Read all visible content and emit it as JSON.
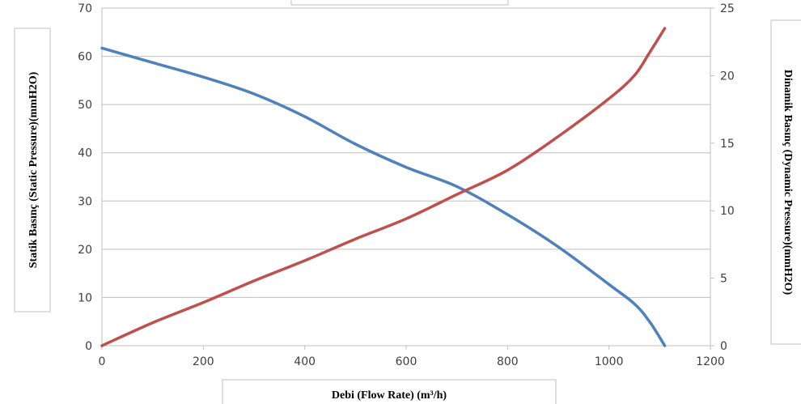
{
  "chart_data": {
    "type": "line",
    "title": "",
    "xlabel": "Debi  (Flow  Rate)  (m³/h)",
    "ylabel_left": "Statik Basınç (Static Pressure)(mmH2O)",
    "ylabel_right": "Dinamik  Basınç (Dynamic  Pressure)(mmH2O)",
    "xlim": [
      0,
      1200
    ],
    "ylim_left": [
      0,
      70
    ],
    "ylim_right": [
      0,
      25
    ],
    "x_ticks": [
      "0",
      "200",
      "400",
      "600",
      "800",
      "1000",
      "1200"
    ],
    "y_ticks_left": [
      "0",
      "10",
      "20",
      "30",
      "40",
      "50",
      "60",
      "70"
    ],
    "y_ticks_right": [
      "0",
      "5",
      "10",
      "15",
      "20",
      "25"
    ],
    "grid": true,
    "series": [
      {
        "axis": "left",
        "color": "#4F81BD",
        "points": [
          [
            0,
            61.7
          ],
          [
            100,
            58.7
          ],
          [
            200,
            55.7
          ],
          [
            300,
            52.2
          ],
          [
            400,
            47.5
          ],
          [
            500,
            41.8
          ],
          [
            600,
            37.0
          ],
          [
            700,
            33.0
          ],
          [
            800,
            27.2
          ],
          [
            900,
            20.5
          ],
          [
            1000,
            12.7
          ],
          [
            1050,
            8.7
          ],
          [
            1080,
            5.0
          ],
          [
            1110,
            0.0
          ]
        ]
      },
      {
        "axis": "right",
        "color": "#C0504D",
        "points": [
          [
            0,
            0.0
          ],
          [
            100,
            1.7
          ],
          [
            200,
            3.2
          ],
          [
            300,
            4.8
          ],
          [
            400,
            6.3
          ],
          [
            500,
            7.9
          ],
          [
            600,
            9.4
          ],
          [
            700,
            11.2
          ],
          [
            800,
            13.0
          ],
          [
            900,
            15.5
          ],
          [
            1000,
            18.3
          ],
          [
            1050,
            20.0
          ],
          [
            1080,
            21.7
          ],
          [
            1110,
            23.5
          ]
        ]
      }
    ]
  }
}
